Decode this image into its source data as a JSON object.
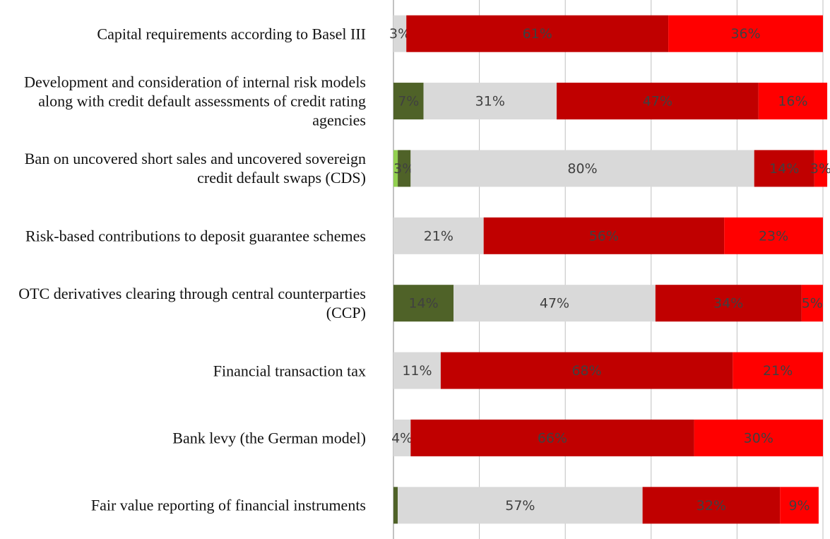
{
  "chart_data": {
    "type": "stacked-bar-horizontal",
    "categories": [
      "Capital requirements according to Basel III",
      "Development and consideration of internal risk models along with credit default assessments of credit rating agencies",
      "Ban on uncovered short sales and uncovered sovereign credit default swaps (CDS)",
      "Risk-based contributions to deposit guarantee schemes",
      "OTC derivatives clearing through central counterparties (CCP)",
      "Financial transaction tax",
      "Bank levy (the German model)",
      "Fair value reporting of financial instruments"
    ],
    "series": [
      {
        "color": "#92d050",
        "values": [
          null,
          null,
          1,
          null,
          null,
          null,
          null,
          null
        ],
        "value_labels": [
          null,
          null,
          null,
          null,
          null,
          null,
          null,
          null
        ]
      },
      {
        "color": "#4f6228",
        "values": [
          null,
          7,
          3,
          null,
          14,
          null,
          null,
          1
        ],
        "value_labels": [
          null,
          "7%",
          "3%",
          null,
          "14%",
          null,
          null,
          null
        ]
      },
      {
        "color": "#d9d9d9",
        "values": [
          3,
          31,
          80,
          21,
          47,
          11,
          4,
          57
        ],
        "value_labels": [
          "3%",
          "31%",
          "80%",
          "21%",
          "47%",
          "11%",
          "4%",
          "57%"
        ]
      },
      {
        "color": "#c00000",
        "values": [
          61,
          47,
          14,
          56,
          34,
          68,
          66,
          32
        ],
        "value_labels": [
          "61%",
          "47%",
          "14%",
          "56%",
          "34%",
          "68%",
          "66%",
          "32%"
        ]
      },
      {
        "color": "#ff0000",
        "values": [
          36,
          16,
          3,
          23,
          5,
          21,
          30,
          9
        ],
        "value_labels": [
          "36%",
          "16%",
          "3%",
          "23%",
          "5%",
          "21%",
          "30%",
          "9%"
        ]
      }
    ],
    "xlim": [
      0,
      100
    ],
    "xticks": [
      0,
      20,
      40,
      60,
      80,
      100
    ],
    "grid": true
  }
}
